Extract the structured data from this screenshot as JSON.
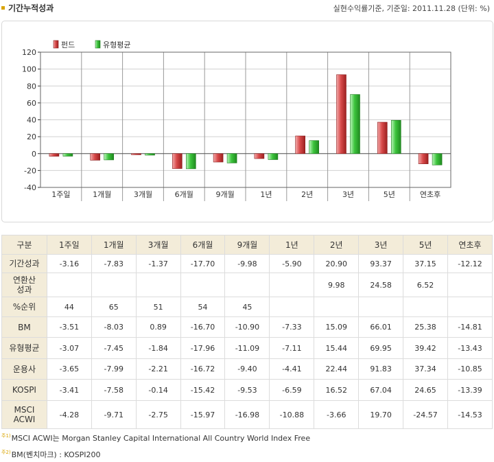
{
  "header": {
    "title": "기간누적성과",
    "note": "실현수익률기준, 기준일: 2011.11.28 (단위: %)"
  },
  "colors": {
    "fund": "#d84a4a",
    "peer": "#3cc43c",
    "grid": "#d0d0d0",
    "header_bg": "#f3ecd9",
    "bullet": "#d9a400"
  },
  "chart_data": {
    "type": "bar",
    "categories": [
      "1주일",
      "1개월",
      "3개월",
      "6개월",
      "9개월",
      "1년",
      "2년",
      "3년",
      "5년",
      "연초후"
    ],
    "series": [
      {
        "name": "펀드",
        "values": [
          -3.16,
          -7.83,
          -1.37,
          -17.7,
          -9.98,
          -5.9,
          20.9,
          93.37,
          37.15,
          -12.12
        ]
      },
      {
        "name": "유형평균",
        "values": [
          -3.07,
          -7.45,
          -1.84,
          -17.96,
          -11.09,
          -7.11,
          15.44,
          69.95,
          39.42,
          -13.43
        ]
      }
    ],
    "ylim": [
      -40,
      120
    ],
    "yticks": [
      "120",
      "100",
      "80",
      "60",
      "40",
      "20",
      "0",
      "-20",
      "-40"
    ],
    "grid": true,
    "legend": "top-left"
  },
  "table": {
    "columns": [
      "구분",
      "1주일",
      "1개월",
      "3개월",
      "6개월",
      "9개월",
      "1년",
      "2년",
      "3년",
      "5년",
      "연초후"
    ],
    "rows": [
      {
        "label": "기간성과",
        "cells": [
          "-3.16",
          "-7.83",
          "-1.37",
          "-17.70",
          "-9.98",
          "-5.90",
          "20.90",
          "93.37",
          "37.15",
          "-12.12"
        ]
      },
      {
        "label": "연환산\n성과",
        "cells": [
          "",
          "",
          "",
          "",
          "",
          "",
          "9.98",
          "24.58",
          "6.52",
          ""
        ]
      },
      {
        "label": "%순위",
        "cells": [
          "44",
          "65",
          "51",
          "54",
          "45",
          "",
          "",
          "",
          "",
          ""
        ]
      },
      {
        "label": "BM",
        "cells": [
          "-3.51",
          "-8.03",
          "0.89",
          "-16.70",
          "-10.90",
          "-7.33",
          "15.09",
          "66.01",
          "25.38",
          "-14.81"
        ]
      },
      {
        "label": "유형평균",
        "cells": [
          "-3.07",
          "-7.45",
          "-1.84",
          "-17.96",
          "-11.09",
          "-7.11",
          "15.44",
          "69.95",
          "39.42",
          "-13.43"
        ]
      },
      {
        "label": "운용사",
        "cells": [
          "-3.65",
          "-7.99",
          "-2.21",
          "-16.72",
          "-9.40",
          "-4.41",
          "22.44",
          "91.83",
          "37.34",
          "-10.85"
        ]
      },
      {
        "label": "KOSPI",
        "cells": [
          "-3.41",
          "-7.58",
          "-0.14",
          "-15.42",
          "-9.53",
          "-6.59",
          "16.52",
          "67.04",
          "24.65",
          "-13.39"
        ]
      },
      {
        "label": "MSCI\nACWI",
        "cells": [
          "-4.28",
          "-9.71",
          "-2.75",
          "-15.97",
          "-16.98",
          "-10.88",
          "-3.66",
          "19.70",
          "-24.57",
          "-14.53"
        ]
      }
    ]
  },
  "footnotes": [
    {
      "mark": "주1)",
      "text": "MSCI ACWI는 Morgan Stanley Capital International All Country World Index Free"
    },
    {
      "mark": "주2)",
      "text": "BM(벤치마크) : KOSPI200"
    }
  ]
}
